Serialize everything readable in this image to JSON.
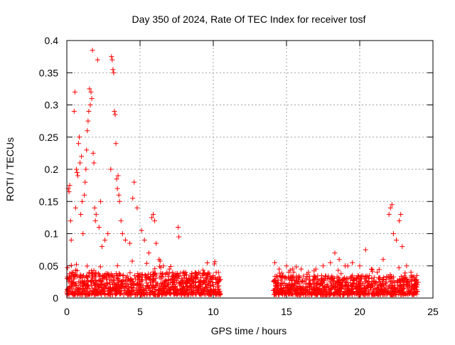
{
  "chart_data": {
    "type": "scatter",
    "title": "Day 350 of 2024, Rate Of TEC Index for receiver tosf",
    "xlabel": "GPS time / hours",
    "ylabel": "ROTI / TECUs",
    "xlim": [
      0,
      25
    ],
    "ylim": [
      0,
      0.4
    ],
    "xticks": [
      0,
      5,
      10,
      15,
      20,
      25
    ],
    "xtick_labels": [
      "0",
      "5",
      "10",
      "15",
      "20",
      "25"
    ],
    "yticks": [
      0,
      0.05,
      0.1,
      0.15,
      0.2,
      0.25,
      0.3,
      0.35,
      0.4
    ],
    "ytick_labels": [
      "0",
      "0.05",
      "0.1",
      "0.15",
      "0.2",
      "0.25",
      "0.3",
      "0.35",
      "0.4"
    ],
    "grid": true,
    "marker": "+",
    "color": "#ff0000",
    "series": [
      {
        "name": "ROTI",
        "points": [
          [
            0.1,
            0.17
          ],
          [
            0.15,
            0.165
          ],
          [
            0.2,
            0.175
          ],
          [
            0.25,
            0.12
          ],
          [
            0.3,
            0.09
          ],
          [
            0.5,
            0.29
          ],
          [
            0.55,
            0.32
          ],
          [
            0.6,
            0.14
          ],
          [
            0.65,
            0.2
          ],
          [
            0.7,
            0.195
          ],
          [
            0.75,
            0.19
          ],
          [
            0.8,
            0.24
          ],
          [
            0.85,
            0.25
          ],
          [
            0.9,
            0.21
          ],
          [
            0.95,
            0.13
          ],
          [
            1.0,
            0.22
          ],
          [
            1.05,
            0.15
          ],
          [
            1.1,
            0.1
          ],
          [
            1.2,
            0.16
          ],
          [
            1.25,
            0.18
          ],
          [
            1.3,
            0.2
          ],
          [
            1.35,
            0.23
          ],
          [
            1.4,
            0.26
          ],
          [
            1.45,
            0.275
          ],
          [
            1.5,
            0.29
          ],
          [
            1.55,
            0.325
          ],
          [
            1.6,
            0.3
          ],
          [
            1.65,
            0.32
          ],
          [
            1.7,
            0.31
          ],
          [
            1.75,
            0.385
          ],
          [
            1.8,
            0.225
          ],
          [
            1.85,
            0.21
          ],
          [
            1.9,
            0.14
          ],
          [
            1.95,
            0.12
          ],
          [
            2.0,
            0.13
          ],
          [
            2.1,
            0.37
          ],
          [
            2.2,
            0.11
          ],
          [
            2.3,
            0.15
          ],
          [
            2.4,
            0.08
          ],
          [
            2.6,
            0.09
          ],
          [
            2.8,
            0.1
          ],
          [
            3.0,
            0.2
          ],
          [
            3.05,
            0.375
          ],
          [
            3.1,
            0.37
          ],
          [
            3.15,
            0.355
          ],
          [
            3.2,
            0.35
          ],
          [
            3.25,
            0.29
          ],
          [
            3.3,
            0.285
          ],
          [
            3.35,
            0.24
          ],
          [
            3.4,
            0.185
          ],
          [
            3.45,
            0.17
          ],
          [
            3.5,
            0.19
          ],
          [
            3.55,
            0.16
          ],
          [
            3.6,
            0.15
          ],
          [
            3.7,
            0.12
          ],
          [
            3.8,
            0.1
          ],
          [
            4.0,
            0.09
          ],
          [
            4.3,
            0.085
          ],
          [
            4.5,
            0.155
          ],
          [
            4.6,
            0.18
          ],
          [
            4.8,
            0.14
          ],
          [
            5.1,
            0.105
          ],
          [
            5.3,
            0.09
          ],
          [
            5.6,
            0.07
          ],
          [
            5.8,
            0.125
          ],
          [
            5.9,
            0.13
          ],
          [
            6.0,
            0.12
          ],
          [
            6.1,
            0.085
          ],
          [
            6.3,
            0.06
          ],
          [
            6.6,
            0.05
          ],
          [
            7.0,
            0.045
          ],
          [
            7.5,
            0.035
          ],
          [
            7.6,
            0.11
          ],
          [
            7.65,
            0.095
          ],
          [
            8.0,
            0.04
          ],
          [
            8.5,
            0.035
          ],
          [
            9.0,
            0.04
          ],
          [
            9.5,
            0.03
          ],
          [
            10.0,
            0.035
          ],
          [
            10.3,
            0.03
          ],
          [
            14.2,
            0.055
          ],
          [
            14.5,
            0.045
          ],
          [
            15.0,
            0.05
          ],
          [
            15.5,
            0.04
          ],
          [
            16.0,
            0.045
          ],
          [
            16.5,
            0.04
          ],
          [
            17.0,
            0.045
          ],
          [
            17.5,
            0.05
          ],
          [
            18.0,
            0.055
          ],
          [
            18.3,
            0.07
          ],
          [
            18.6,
            0.06
          ],
          [
            19.0,
            0.05
          ],
          [
            19.5,
            0.055
          ],
          [
            20.0,
            0.05
          ],
          [
            20.4,
            0.075
          ],
          [
            20.8,
            0.045
          ],
          [
            21.2,
            0.04
          ],
          [
            21.6,
            0.06
          ],
          [
            22.0,
            0.13
          ],
          [
            22.1,
            0.14
          ],
          [
            22.2,
            0.145
          ],
          [
            22.3,
            0.1
          ],
          [
            22.5,
            0.09
          ],
          [
            22.7,
            0.12
          ],
          [
            22.8,
            0.13
          ],
          [
            22.9,
            0.08
          ],
          [
            23.2,
            0.05
          ],
          [
            23.5,
            0.04
          ],
          [
            23.9,
            0.035
          ]
        ]
      }
    ],
    "dense_band": {
      "note": "dense cluster of markers near the baseline",
      "segments": [
        {
          "x": [
            0,
            10.5
          ],
          "y_range": [
            0.005,
            0.04
          ]
        },
        {
          "x": [
            14.1,
            24.0
          ],
          "y_range": [
            0.005,
            0.035
          ]
        }
      ]
    }
  }
}
